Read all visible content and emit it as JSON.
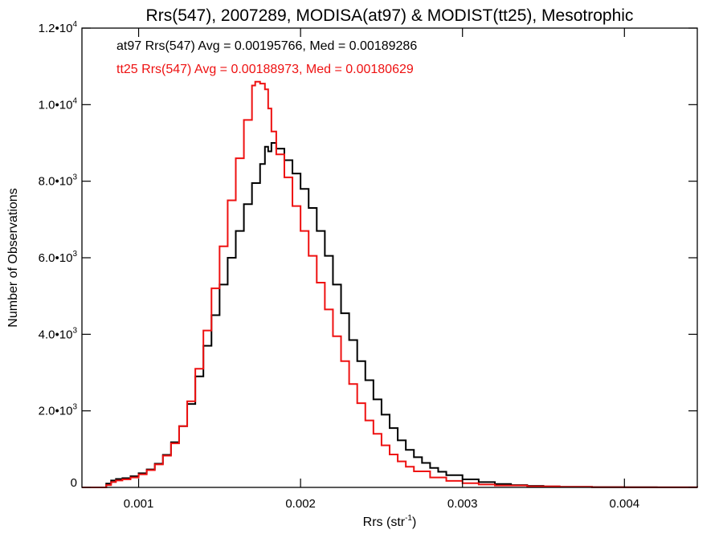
{
  "chart_data": {
    "type": "line",
    "step": true,
    "title": "Rrs(547), 2007289, MODISA(at97) & MODIST(tt25), Mesotrophic",
    "xlabel_main": "Rrs (str",
    "xlabel_sup": "-1",
    "xlabel_end": ")",
    "ylabel": "Number of Observations",
    "xlim": [
      0.00065,
      0.00445
    ],
    "ylim": [
      0,
      12000
    ],
    "grid": false,
    "x_ticks": [
      {
        "value": 0.001,
        "label": "0.001"
      },
      {
        "value": 0.002,
        "label": "0.002"
      },
      {
        "value": 0.003,
        "label": "0.003"
      },
      {
        "value": 0.004,
        "label": "0.004"
      }
    ],
    "y_ticks": [
      {
        "value": 0,
        "mant": "0",
        "exp": ""
      },
      {
        "value": 2000,
        "mant": "2.0•10",
        "exp": "3"
      },
      {
        "value": 4000,
        "mant": "4.0•10",
        "exp": "3"
      },
      {
        "value": 6000,
        "mant": "6.0•10",
        "exp": "3"
      },
      {
        "value": 8000,
        "mant": "8.0•10",
        "exp": "3"
      },
      {
        "value": 10000,
        "mant": "1.0•10",
        "exp": "4"
      },
      {
        "value": 12000,
        "mant": "1.2•10",
        "exp": "4"
      }
    ],
    "annotations": [
      {
        "text": "at97 Rrs(547) Avg = 0.00195766, Med = 0.00189286",
        "color": "#000000"
      },
      {
        "text": "tt25 Rrs(547) Avg = 0.00188973, Med = 0.00180629",
        "color": "#ee1111"
      }
    ],
    "series": [
      {
        "color": "#000000",
        "points": [
          [
            0.00065,
            0
          ],
          [
            0.00078,
            0
          ],
          [
            0.0008,
            100
          ],
          [
            0.00083,
            180
          ],
          [
            0.00086,
            220
          ],
          [
            0.0009,
            240
          ],
          [
            0.00095,
            290
          ],
          [
            0.001,
            370
          ],
          [
            0.00105,
            470
          ],
          [
            0.0011,
            620
          ],
          [
            0.00115,
            850
          ],
          [
            0.0012,
            1180
          ],
          [
            0.00125,
            1600
          ],
          [
            0.0013,
            2180
          ],
          [
            0.00135,
            2900
          ],
          [
            0.0014,
            3700
          ],
          [
            0.00145,
            4500
          ],
          [
            0.0015,
            5300
          ],
          [
            0.00155,
            6000
          ],
          [
            0.0016,
            6700
          ],
          [
            0.00165,
            7400
          ],
          [
            0.0017,
            7950
          ],
          [
            0.00175,
            8450
          ],
          [
            0.00178,
            8900
          ],
          [
            0.0018,
            8780
          ],
          [
            0.00182,
            9000
          ],
          [
            0.00185,
            8850
          ],
          [
            0.0019,
            8550
          ],
          [
            0.00195,
            8200
          ],
          [
            0.002,
            7800
          ],
          [
            0.00205,
            7300
          ],
          [
            0.0021,
            6700
          ],
          [
            0.00215,
            6050
          ],
          [
            0.0022,
            5300
          ],
          [
            0.00225,
            4550
          ],
          [
            0.0023,
            3850
          ],
          [
            0.00235,
            3300
          ],
          [
            0.0024,
            2800
          ],
          [
            0.00245,
            2300
          ],
          [
            0.0025,
            1900
          ],
          [
            0.00255,
            1550
          ],
          [
            0.0026,
            1230
          ],
          [
            0.00265,
            980
          ],
          [
            0.0027,
            790
          ],
          [
            0.00275,
            640
          ],
          [
            0.0028,
            510
          ],
          [
            0.00285,
            410
          ],
          [
            0.0029,
            320
          ],
          [
            0.003,
            210
          ],
          [
            0.0031,
            140
          ],
          [
            0.0032,
            90
          ],
          [
            0.0033,
            60
          ],
          [
            0.0034,
            40
          ],
          [
            0.0035,
            25
          ],
          [
            0.0036,
            15
          ],
          [
            0.0038,
            8
          ],
          [
            0.004,
            4
          ],
          [
            0.0042,
            2
          ],
          [
            0.00445,
            1
          ]
        ]
      },
      {
        "color": "#ee1111",
        "points": [
          [
            0.00065,
            0
          ],
          [
            0.00078,
            0
          ],
          [
            0.0008,
            60
          ],
          [
            0.00083,
            140
          ],
          [
            0.00086,
            180
          ],
          [
            0.0009,
            210
          ],
          [
            0.00095,
            260
          ],
          [
            0.001,
            340
          ],
          [
            0.00105,
            450
          ],
          [
            0.0011,
            600
          ],
          [
            0.00115,
            830
          ],
          [
            0.0012,
            1150
          ],
          [
            0.00125,
            1600
          ],
          [
            0.0013,
            2250
          ],
          [
            0.00135,
            3100
          ],
          [
            0.0014,
            4100
          ],
          [
            0.00145,
            5200
          ],
          [
            0.0015,
            6300
          ],
          [
            0.00155,
            7500
          ],
          [
            0.0016,
            8600
          ],
          [
            0.00165,
            9600
          ],
          [
            0.0017,
            10500
          ],
          [
            0.00172,
            10600
          ],
          [
            0.00175,
            10550
          ],
          [
            0.00178,
            10400
          ],
          [
            0.0018,
            9900
          ],
          [
            0.00182,
            9300
          ],
          [
            0.00185,
            8700
          ],
          [
            0.0019,
            8100
          ],
          [
            0.00195,
            7350
          ],
          [
            0.002,
            6700
          ],
          [
            0.00205,
            6050
          ],
          [
            0.0021,
            5350
          ],
          [
            0.00215,
            4650
          ],
          [
            0.0022,
            3950
          ],
          [
            0.00225,
            3300
          ],
          [
            0.0023,
            2700
          ],
          [
            0.00235,
            2200
          ],
          [
            0.0024,
            1750
          ],
          [
            0.00245,
            1400
          ],
          [
            0.0025,
            1100
          ],
          [
            0.00255,
            860
          ],
          [
            0.0026,
            680
          ],
          [
            0.00265,
            540
          ],
          [
            0.0027,
            420
          ],
          [
            0.0028,
            260
          ],
          [
            0.0029,
            170
          ],
          [
            0.003,
            110
          ],
          [
            0.0031,
            75
          ],
          [
            0.0032,
            50
          ],
          [
            0.0034,
            25
          ],
          [
            0.0036,
            12
          ],
          [
            0.0038,
            6
          ],
          [
            0.004,
            3
          ],
          [
            0.00445,
            1
          ]
        ]
      }
    ]
  }
}
